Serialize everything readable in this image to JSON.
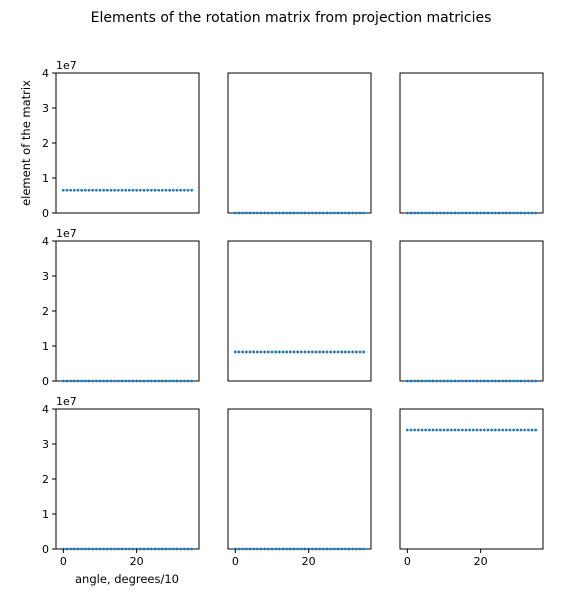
{
  "figure": {
    "title": "Elements of the rotation matrix from projection matricies",
    "ylabel": "element of the matrix",
    "xlabel": "angle, degrees/10",
    "offset_text": "1e7"
  },
  "colors": {
    "series": "#1f77b4",
    "axes": "#000000",
    "text": "#000000",
    "background": "#ffffff"
  },
  "chart_data": {
    "type": "scatter",
    "layout_rows": 3,
    "layout_cols": 3,
    "shared_x": true,
    "shared_y": true,
    "x": [
      0,
      1,
      2,
      3,
      4,
      5,
      6,
      7,
      8,
      9,
      10,
      11,
      12,
      13,
      14,
      15,
      16,
      17,
      18,
      19,
      20,
      21,
      22,
      23,
      24,
      25,
      26,
      27,
      28,
      29,
      30,
      31,
      32,
      33,
      34,
      35
    ],
    "xlim": [
      -2,
      37
    ],
    "ylim": [
      0,
      40000000
    ],
    "yticks": [
      0,
      10000000,
      20000000,
      30000000,
      40000000
    ],
    "ytick_labels": [
      "0",
      "1",
      "2",
      "3",
      "4"
    ],
    "xticks": [
      0,
      20
    ],
    "xtick_labels": [
      "0",
      "20"
    ],
    "panels": [
      {
        "row": 0,
        "col": 0,
        "value": 6500000
      },
      {
        "row": 0,
        "col": 1,
        "value": 0
      },
      {
        "row": 0,
        "col": 2,
        "value": 0
      },
      {
        "row": 1,
        "col": 0,
        "value": 0
      },
      {
        "row": 1,
        "col": 1,
        "value": 8300000
      },
      {
        "row": 1,
        "col": 2,
        "value": 0
      },
      {
        "row": 2,
        "col": 0,
        "value": 0
      },
      {
        "row": 2,
        "col": 1,
        "value": 0
      },
      {
        "row": 2,
        "col": 2,
        "value": 34000000
      }
    ]
  }
}
